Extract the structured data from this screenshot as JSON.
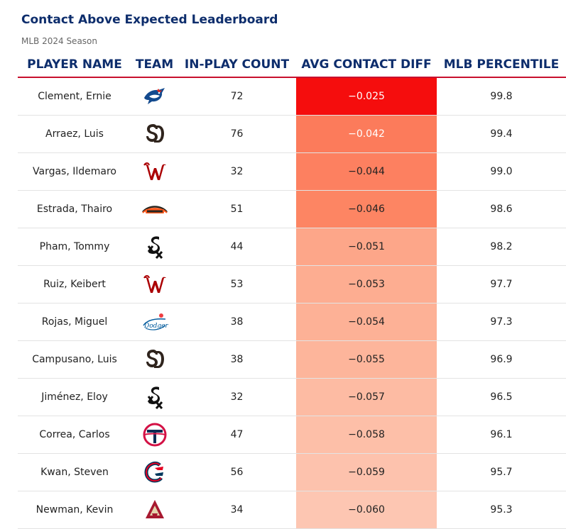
{
  "chart_data": {
    "type": "table",
    "title": "Contact Above Expected Leaderboard",
    "subtitle": "MLB 2024 Season",
    "columns": [
      "PLAYER NAME",
      "TEAM",
      "IN-PLAY COUNT",
      "AVG CONTACT DIFF",
      "MLB PERCENTILE"
    ],
    "rows": [
      {
        "player": "Clement, Ernie",
        "team_icon": "blue-jays-logo-icon",
        "count": "72",
        "diff": "−0.025",
        "diff_value": -0.025,
        "diff_color": "#f50d0d",
        "diff_text_light": true,
        "percentile": "99.8"
      },
      {
        "player": "Arraez, Luis",
        "team_icon": "padres-logo-icon",
        "count": "76",
        "diff": "−0.042",
        "diff_value": -0.042,
        "diff_color": "#fc7b5b",
        "diff_text_light": true,
        "percentile": "99.4"
      },
      {
        "player": "Vargas, Ildemaro",
        "team_icon": "nationals-logo-icon",
        "count": "32",
        "diff": "−0.044",
        "diff_value": -0.044,
        "diff_color": "#fd8060",
        "diff_text_light": false,
        "percentile": "99.0"
      },
      {
        "player": "Estrada, Thairo",
        "team_icon": "giants-logo-icon",
        "count": "51",
        "diff": "−0.046",
        "diff_value": -0.046,
        "diff_color": "#fd8563",
        "diff_text_light": false,
        "percentile": "98.6"
      },
      {
        "player": "Pham, Tommy",
        "team_icon": "white-sox-logo-icon",
        "count": "44",
        "diff": "−0.051",
        "diff_value": -0.051,
        "diff_color": "#fda689",
        "diff_text_light": false,
        "percentile": "98.2"
      },
      {
        "player": "Ruiz, Keibert",
        "team_icon": "nationals-logo-icon",
        "count": "53",
        "diff": "−0.053",
        "diff_value": -0.053,
        "diff_color": "#fdad91",
        "diff_text_light": false,
        "percentile": "97.7"
      },
      {
        "player": "Rojas, Miguel",
        "team_icon": "dodgers-logo-icon",
        "count": "38",
        "diff": "−0.054",
        "diff_value": -0.054,
        "diff_color": "#fdb196",
        "diff_text_light": false,
        "percentile": "97.3"
      },
      {
        "player": "Campusano, Luis",
        "team_icon": "padres-logo-icon",
        "count": "38",
        "diff": "−0.055",
        "diff_value": -0.055,
        "diff_color": "#fdb59b",
        "diff_text_light": false,
        "percentile": "96.9"
      },
      {
        "player": "Jiménez, Eloy",
        "team_icon": "white-sox-logo-icon",
        "count": "32",
        "diff": "−0.057",
        "diff_value": -0.057,
        "diff_color": "#fdbba3",
        "diff_text_light": false,
        "percentile": "96.5"
      },
      {
        "player": "Correa, Carlos",
        "team_icon": "twins-logo-icon",
        "count": "47",
        "diff": "−0.058",
        "diff_value": -0.058,
        "diff_color": "#fdbfa8",
        "diff_text_light": false,
        "percentile": "96.1"
      },
      {
        "player": "Kwan, Steven",
        "team_icon": "guardians-logo-icon",
        "count": "56",
        "diff": "−0.059",
        "diff_value": -0.059,
        "diff_color": "#fdc2ad",
        "diff_text_light": false,
        "percentile": "95.7"
      },
      {
        "player": "Newman, Kevin",
        "team_icon": "diamondbacks-logo-icon",
        "count": "34",
        "diff": "−0.060",
        "diff_value": -0.06,
        "diff_color": "#fdc6b2",
        "diff_text_light": false,
        "percentile": "95.3"
      }
    ]
  },
  "colors": {
    "title": "#0d2d6c",
    "header_rule": "#c8102e",
    "row_rule": "#e3e3e3"
  }
}
